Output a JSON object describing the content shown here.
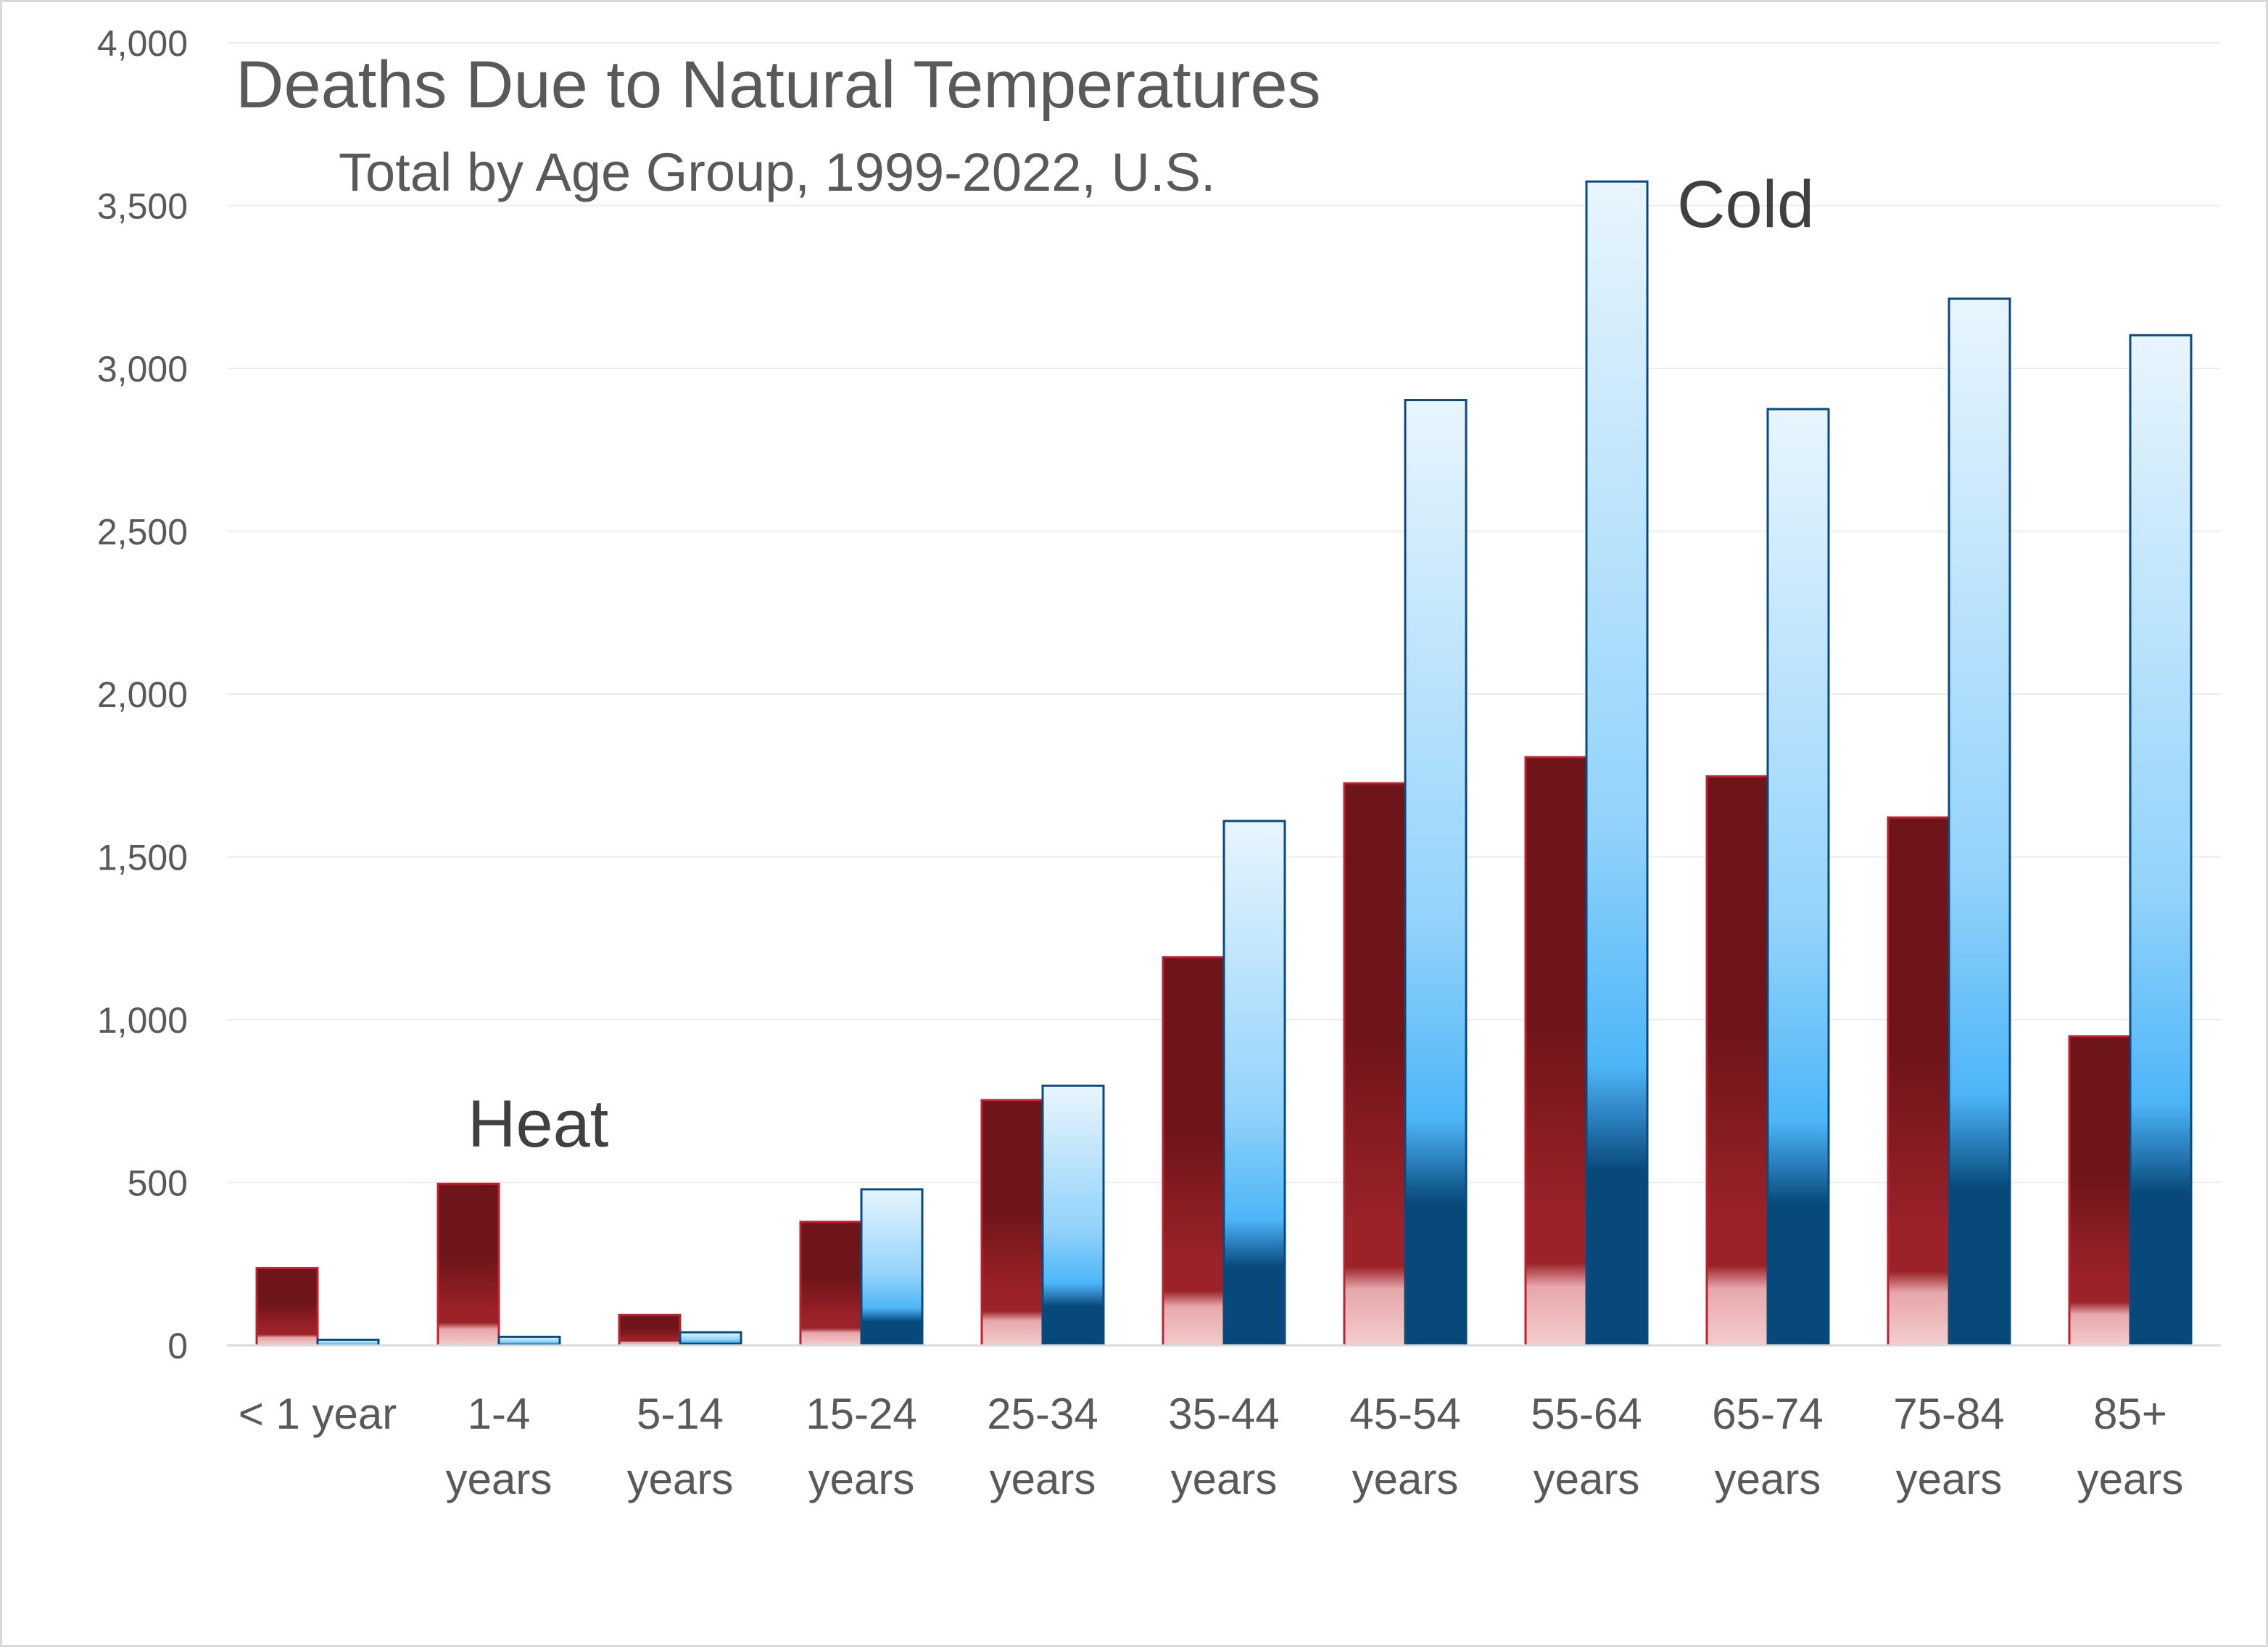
{
  "chart_data": {
    "type": "bar",
    "title": "Deaths Due to Natural Temperatures",
    "subtitle": "Total by Age Group, 1999-2022, U.S.",
    "categories": [
      [
        "< 1 year"
      ],
      [
        "1-4",
        "years"
      ],
      [
        "5-14",
        "years"
      ],
      [
        "15-24",
        "years"
      ],
      [
        "25-34",
        "years"
      ],
      [
        "35-44",
        "years"
      ],
      [
        "45-54",
        "years"
      ],
      [
        "55-64",
        "years"
      ],
      [
        "65-74",
        "years"
      ],
      [
        "75-84",
        "years"
      ],
      [
        "85+",
        "years"
      ]
    ],
    "series": [
      {
        "name": "Heat",
        "values": [
          237,
          496,
          93,
          379,
          753,
          1192,
          1726,
          1806,
          1747,
          1621,
          949
        ],
        "colors": {
          "top": "#6e1519",
          "middle": "#9b2229",
          "bottom": "#f4cccc",
          "border": "#c0202e"
        }
      },
      {
        "name": "Cold",
        "values": [
          17,
          26,
          40,
          479,
          797,
          1610,
          2903,
          3574,
          2875,
          3214,
          3102
        ],
        "colors": {
          "top": "#e8f5fd",
          "middle": "#4db6f7",
          "bottom": "#07497a",
          "border": "#0b4a7c"
        }
      }
    ],
    "ylim": [
      0,
      4000
    ],
    "yticks": [
      "0",
      "500",
      "1,000",
      "1,500",
      "2,000",
      "2,500",
      "3,000",
      "3,500",
      "4,000"
    ],
    "xlabel": "",
    "ylabel": "",
    "grid": true,
    "legend": "none",
    "annotations": [
      "Heat",
      "Cold"
    ]
  }
}
